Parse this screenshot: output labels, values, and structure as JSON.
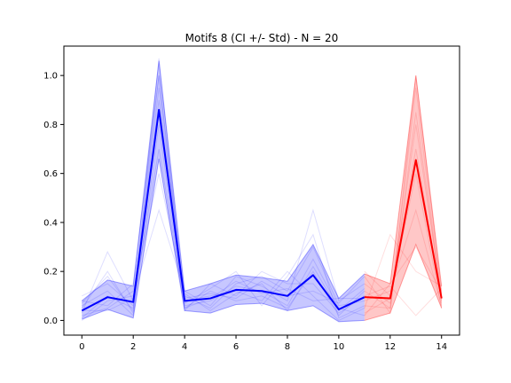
{
  "chart_data": {
    "type": "line",
    "title": "Motifs 8 (CI +/- Std) - N = 20",
    "xlabel": "",
    "ylabel": "",
    "xlim": [
      -0.7,
      14.7
    ],
    "ylim": [
      -0.06,
      1.12
    ],
    "xticks": [
      0,
      2,
      4,
      6,
      8,
      10,
      12,
      14
    ],
    "yticks": [
      0.0,
      0.2,
      0.4,
      0.6,
      0.8,
      1.0
    ],
    "grid": false,
    "legend": "none",
    "series": [
      {
        "color": "#0000ff",
        "x": [
          0,
          1,
          2,
          3,
          4,
          5,
          6,
          7,
          8,
          9,
          10,
          11
        ],
        "mean": [
          0.04,
          0.095,
          0.075,
          0.86,
          0.08,
          0.09,
          0.125,
          0.12,
          0.1,
          0.185,
          0.045,
          0.095
        ],
        "lower": [
          0.005,
          0.045,
          0.01,
          0.66,
          0.04,
          0.03,
          0.065,
          0.07,
          0.04,
          0.06,
          -0.005,
          0.0
        ],
        "upper": [
          0.08,
          0.165,
          0.14,
          1.06,
          0.12,
          0.15,
          0.185,
          0.175,
          0.16,
          0.31,
          0.09,
          0.19
        ]
      },
      {
        "color": "#ff0000",
        "x": [
          11,
          12,
          13,
          14
        ],
        "mean": [
          0.095,
          0.09,
          0.655,
          0.09
        ],
        "lower": [
          0.0,
          0.03,
          0.31,
          0.05
        ],
        "upper": [
          0.19,
          0.15,
          1.0,
          0.14
        ]
      }
    ],
    "samples_blue": [
      [
        0.1,
        0.15,
        0.06,
        1.0,
        0.05,
        0.12,
        0.08,
        0.1,
        0.05,
        0.2,
        0.02,
        0.12
      ],
      [
        0.02,
        0.05,
        0.12,
        0.6,
        0.1,
        0.05,
        0.15,
        0.18,
        0.12,
        0.3,
        0.06,
        0.08
      ],
      [
        0.05,
        0.2,
        0.03,
        0.9,
        0.08,
        0.1,
        0.12,
        0.08,
        0.2,
        0.1,
        0.0,
        0.05
      ],
      [
        0.0,
        0.08,
        0.1,
        0.45,
        0.12,
        0.06,
        0.18,
        0.14,
        0.08,
        0.45,
        0.08,
        0.15
      ],
      [
        0.06,
        0.12,
        0.02,
        0.8,
        0.04,
        0.15,
        0.1,
        0.2,
        0.15,
        0.15,
        0.03,
        0.1
      ],
      [
        0.03,
        0.28,
        0.08,
        0.7,
        0.06,
        0.08,
        0.14,
        0.12,
        0.06,
        0.25,
        0.05,
        0.02
      ],
      [
        0.08,
        0.06,
        0.15,
        1.0,
        0.09,
        0.11,
        0.09,
        0.16,
        0.1,
        0.12,
        0.07,
        0.18
      ],
      [
        0.01,
        0.1,
        0.05,
        0.95,
        0.07,
        0.13,
        0.2,
        0.06,
        0.18,
        0.35,
        0.01,
        0.06
      ],
      [
        0.04,
        0.04,
        0.09,
        0.85,
        0.11,
        0.04,
        0.11,
        0.15,
        0.04,
        0.22,
        0.04,
        0.13
      ],
      [
        0.07,
        0.18,
        0.04,
        1.07,
        0.05,
        0.09,
        0.16,
        0.11,
        0.13,
        0.08,
        0.09,
        0.09
      ]
    ],
    "samples_red": [
      [
        0.12,
        0.05,
        0.95,
        0.07
      ],
      [
        0.02,
        0.15,
        0.3,
        0.12
      ],
      [
        0.2,
        0.1,
        0.6,
        0.05
      ],
      [
        0.05,
        0.35,
        0.2,
        0.14
      ],
      [
        0.15,
        0.07,
        0.8,
        0.1
      ],
      [
        0.08,
        0.12,
        0.45,
        0.06
      ],
      [
        0.18,
        0.03,
        1.0,
        0.11
      ],
      [
        0.03,
        0.09,
        0.7,
        0.08
      ],
      [
        0.1,
        0.14,
        0.02,
        0.13
      ],
      [
        0.06,
        0.05,
        0.85,
        0.09
      ]
    ]
  }
}
